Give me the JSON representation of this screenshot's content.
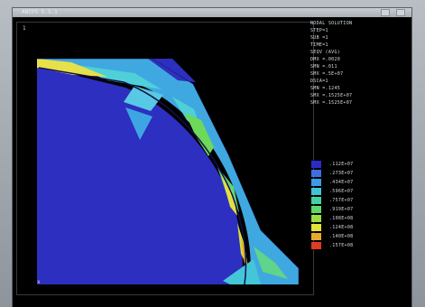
{
  "window": {
    "title": "ANSYS 5.5.1"
  },
  "viewport": {
    "corner_label": "1",
    "axis_label": "x"
  },
  "info_lines": [
    "NODAL SOLUTION",
    "STEP=1",
    "SUB =1",
    "TIME=1",
    "SEQV (AVG)",
    "DMX =.0020",
    "SMN =.011",
    "SMX =.5E+07",
    "DSCA=1",
    "SMN =.1245",
    "SMX =.1525E+07",
    "SMX =.1525E+07"
  ],
  "legend": {
    "colors": [
      "#2b2bc8",
      "#3f6ee0",
      "#3d9be6",
      "#3fc4d4",
      "#44d0a4",
      "#5ed76a",
      "#9cdc3e",
      "#e2e23a",
      "#e6a82e",
      "#e03a28"
    ],
    "labels": [
      ".112E+07",
      ".273E+07",
      ".434E+07",
      ".596E+07",
      ".757E+07",
      ".919E+07",
      ".108E+08",
      ".124E+08",
      ".140E+08",
      ".157E+08"
    ]
  }
}
